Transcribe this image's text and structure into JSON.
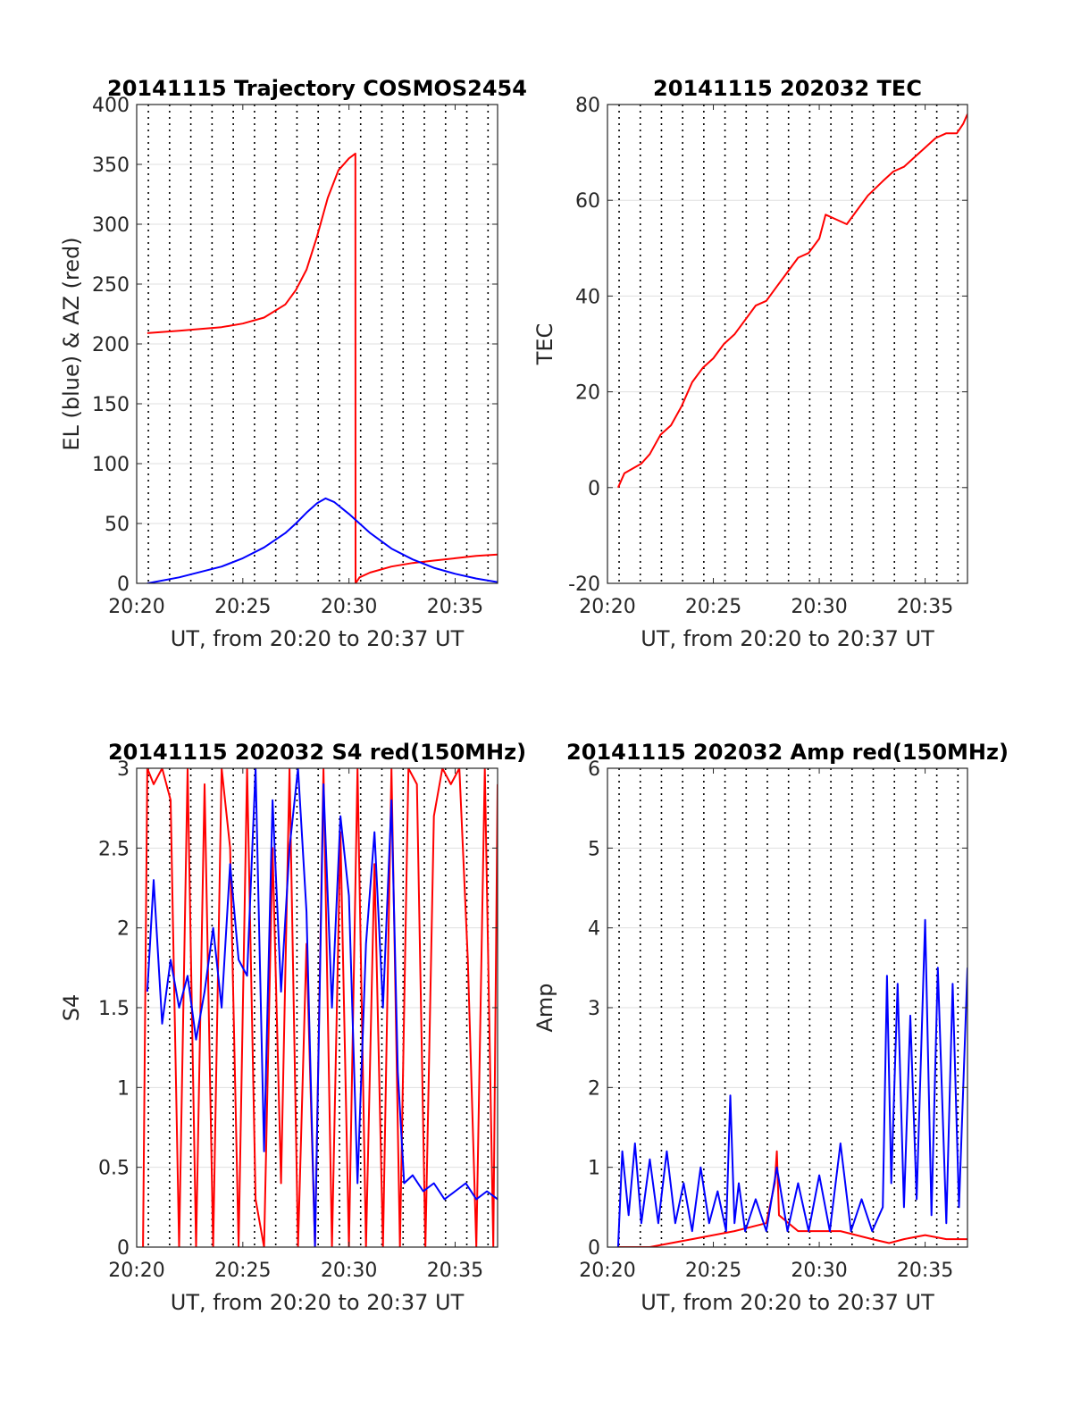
{
  "chart_data": [
    {
      "type": "line",
      "title": "20141115 Trajectory COSMOS2454",
      "xlabel": "UT, from 20:20 to 20:37 UT",
      "ylabel": "EL (blue) & AZ (red)",
      "xlim": [
        0,
        17
      ],
      "ylim": [
        0,
        400
      ],
      "xticks": [
        0,
        5,
        10,
        15
      ],
      "xtick_labels": [
        "20:20",
        "20:25",
        "20:30",
        "20:35"
      ],
      "yticks": [
        0,
        50,
        100,
        150,
        200,
        250,
        300,
        350,
        400
      ],
      "ytick_labels": [
        "0",
        "50",
        "100",
        "150",
        "200",
        "250",
        "300",
        "350",
        "400"
      ],
      "grid": true,
      "vlines_dotted": [
        0.55,
        1.55,
        2.55,
        3.55,
        4.55,
        5.55,
        6.55,
        7.55,
        8.55,
        9.55,
        10.55,
        11.55,
        12.55,
        13.55,
        14.55,
        15.55,
        16.55
      ],
      "series": [
        {
          "color": "#ff0000",
          "x": [
            0.5,
            2,
            4,
            5,
            6,
            7,
            7.5,
            8,
            8.5,
            9,
            9.5,
            10,
            10.3,
            10.31,
            10.5,
            11,
            12,
            13,
            14,
            15,
            16,
            17
          ],
          "y": [
            209,
            211,
            214,
            217,
            222,
            233,
            245,
            262,
            290,
            322,
            345,
            355,
            359,
            0,
            5,
            9,
            14,
            17,
            19,
            21,
            23,
            24
          ]
        },
        {
          "color": "#0000ff",
          "x": [
            0.5,
            2,
            4,
            5,
            6,
            7,
            7.5,
            8,
            8.5,
            8.9,
            9.3,
            10,
            11,
            12,
            13,
            14,
            15,
            16,
            17
          ],
          "y": [
            0,
            5,
            14,
            21,
            30,
            42,
            50,
            59,
            67,
            71,
            68,
            58,
            42,
            29,
            20,
            13,
            8,
            4,
            1
          ]
        }
      ]
    },
    {
      "type": "line",
      "title": "20141115 202032 TEC",
      "xlabel": "UT, from 20:20 to 20:37 UT",
      "ylabel": "TEC",
      "xlim": [
        0,
        17
      ],
      "ylim": [
        -20,
        80
      ],
      "xticks": [
        0,
        5,
        10,
        15
      ],
      "xtick_labels": [
        "20:20",
        "20:25",
        "20:30",
        "20:35"
      ],
      "yticks": [
        -20,
        0,
        20,
        40,
        60,
        80
      ],
      "ytick_labels": [
        "-20",
        "0",
        "20",
        "40",
        "60",
        "80"
      ],
      "grid": true,
      "vlines_dotted": [
        0.55,
        1.55,
        2.55,
        3.55,
        4.55,
        5.55,
        6.55,
        7.55,
        8.55,
        9.55,
        10.55,
        11.55,
        12.55,
        13.55,
        14.55,
        15.55,
        16.55
      ],
      "series": [
        {
          "color": "#ff0000",
          "x": [
            0.5,
            0.8,
            1.2,
            1.6,
            2,
            2.5,
            3,
            3.5,
            4,
            4.5,
            5,
            5.5,
            6,
            6.5,
            7,
            7.5,
            8,
            8.5,
            9,
            9.5,
            10,
            10.3,
            10.8,
            11.3,
            11.8,
            12.3,
            13,
            13.5,
            14,
            14.5,
            15,
            15.5,
            16,
            16.5,
            16.8,
            17
          ],
          "y": [
            0,
            3,
            4,
            5,
            7,
            11,
            13,
            17,
            22,
            25,
            27,
            30,
            32,
            35,
            38,
            39,
            42,
            45,
            48,
            49,
            52,
            57,
            56,
            55,
            58,
            61,
            64,
            66,
            67,
            69,
            71,
            73,
            74,
            74,
            76,
            78
          ]
        }
      ]
    },
    {
      "type": "line",
      "title": "20141115 202032 S4 red(150MHz)",
      "xlabel": "UT, from 20:20 to 20:37 UT",
      "ylabel": "S4",
      "xlim": [
        0,
        17
      ],
      "ylim": [
        0,
        3
      ],
      "xticks": [
        0,
        5,
        10,
        15
      ],
      "xtick_labels": [
        "20:20",
        "20:25",
        "20:30",
        "20:35"
      ],
      "yticks": [
        0,
        0.5,
        1,
        1.5,
        2,
        2.5,
        3
      ],
      "ytick_labels": [
        "0",
        "0.5",
        "1",
        "1.5",
        "2",
        "2.5",
        "3"
      ],
      "grid": true,
      "vlines_dotted": [
        0.55,
        1.55,
        2.55,
        3.55,
        4.55,
        5.55,
        6.55,
        7.55,
        8.55,
        9.55,
        10.55,
        11.55,
        12.55,
        13.55,
        14.55,
        15.55,
        16.55
      ],
      "series": [
        {
          "color": "#ff0000",
          "x": [
            0.3,
            0.5,
            0.8,
            1.2,
            1.6,
            2,
            2.4,
            2.8,
            3.2,
            3.6,
            4,
            4.4,
            4.8,
            5.2,
            5.6,
            6,
            6.4,
            6.8,
            7.2,
            7.6,
            8,
            8.4,
            8.8,
            9.2,
            9.6,
            10,
            10.4,
            10.8,
            11.2,
            11.6,
            12,
            12.4,
            12.8,
            13.2,
            13.6,
            14,
            14.4,
            14.8,
            15.2,
            15.6,
            16,
            16.4,
            16.8,
            17
          ],
          "y": [
            0,
            3,
            2.9,
            3,
            2.8,
            0,
            3,
            0,
            2.9,
            0,
            3,
            2.5,
            0,
            3,
            0.3,
            0,
            2.5,
            0.4,
            3,
            0,
            1.9,
            0,
            3,
            0,
            2.6,
            0,
            3,
            0,
            2.4,
            0,
            3,
            0,
            3,
            2.9,
            0,
            2.7,
            3,
            2.9,
            3,
            1.8,
            0,
            3,
            0,
            2.9
          ]
        },
        {
          "color": "#0000ff",
          "x": [
            0.5,
            0.8,
            1.2,
            1.6,
            2,
            2.4,
            2.8,
            3.2,
            3.6,
            4,
            4.4,
            4.8,
            5.2,
            5.6,
            6,
            6.4,
            6.8,
            7.2,
            7.6,
            8,
            8.4,
            8.8,
            9.2,
            9.6,
            10,
            10.4,
            10.8,
            11.2,
            11.6,
            12,
            12.3,
            12.6,
            13,
            13.5,
            14,
            14.5,
            15,
            15.5,
            16,
            16.5,
            17
          ],
          "y": [
            1.6,
            2.3,
            1.4,
            1.8,
            1.5,
            1.7,
            1.3,
            1.6,
            2,
            1.5,
            2.4,
            1.8,
            1.7,
            3,
            0.6,
            2.8,
            1.6,
            2.5,
            3,
            2.1,
            0,
            2.9,
            1.5,
            2.7,
            2.2,
            0.4,
            1.9,
            2.6,
            1.5,
            2.8,
            1.1,
            0.4,
            0.45,
            0.35,
            0.4,
            0.3,
            0.35,
            0.4,
            0.3,
            0.35,
            0.3
          ]
        }
      ]
    },
    {
      "type": "line",
      "title": "20141115 202032 Amp red(150MHz)",
      "xlabel": "UT, from 20:20 to 20:37 UT",
      "ylabel": "Amp",
      "xlim": [
        0,
        17
      ],
      "ylim": [
        0,
        6
      ],
      "xticks": [
        0,
        5,
        10,
        15
      ],
      "xtick_labels": [
        "20:20",
        "20:25",
        "20:30",
        "20:35"
      ],
      "yticks": [
        0,
        1,
        2,
        3,
        4,
        5,
        6
      ],
      "ytick_labels": [
        "0",
        "1",
        "2",
        "3",
        "4",
        "5",
        "6"
      ],
      "grid": true,
      "vlines_dotted": [
        0.55,
        1.55,
        2.55,
        3.55,
        4.55,
        5.55,
        6.55,
        7.55,
        8.55,
        9.55,
        10.55,
        11.55,
        12.55,
        13.55,
        14.55,
        15.55,
        16.55
      ],
      "series": [
        {
          "color": "#ff0000",
          "x": [
            0.5,
            2,
            4,
            6,
            7.5,
            7.9,
            8,
            8.1,
            9,
            11,
            12.5,
            13.3,
            14,
            15,
            16,
            17
          ],
          "y": [
            0,
            0,
            0.1,
            0.2,
            0.3,
            0.8,
            1.2,
            0.4,
            0.2,
            0.2,
            0.1,
            0.05,
            0.1,
            0.15,
            0.1,
            0.1
          ]
        },
        {
          "color": "#0000ff",
          "x": [
            0.5,
            0.7,
            1,
            1.3,
            1.6,
            2,
            2.4,
            2.8,
            3.2,
            3.6,
            4,
            4.4,
            4.8,
            5.2,
            5.6,
            5.8,
            6,
            6.2,
            6.5,
            7,
            7.5,
            8,
            8.5,
            9,
            9.5,
            10,
            10.5,
            11,
            11.5,
            12,
            12.5,
            13,
            13.2,
            13.4,
            13.7,
            14,
            14.3,
            14.6,
            15,
            15.3,
            15.6,
            16,
            16.3,
            16.6,
            17
          ],
          "y": [
            0,
            1.2,
            0.4,
            1.3,
            0.3,
            1.1,
            0.3,
            1.2,
            0.3,
            0.8,
            0.2,
            1.0,
            0.3,
            0.7,
            0.2,
            1.9,
            0.3,
            0.8,
            0.2,
            0.6,
            0.2,
            1.0,
            0.2,
            0.8,
            0.2,
            0.9,
            0.2,
            1.3,
            0.2,
            0.6,
            0.2,
            0.5,
            3.4,
            0.8,
            3.3,
            0.5,
            2.9,
            0.6,
            4.1,
            0.4,
            3.5,
            0.3,
            3.3,
            0.5,
            3.5
          ]
        }
      ]
    }
  ]
}
